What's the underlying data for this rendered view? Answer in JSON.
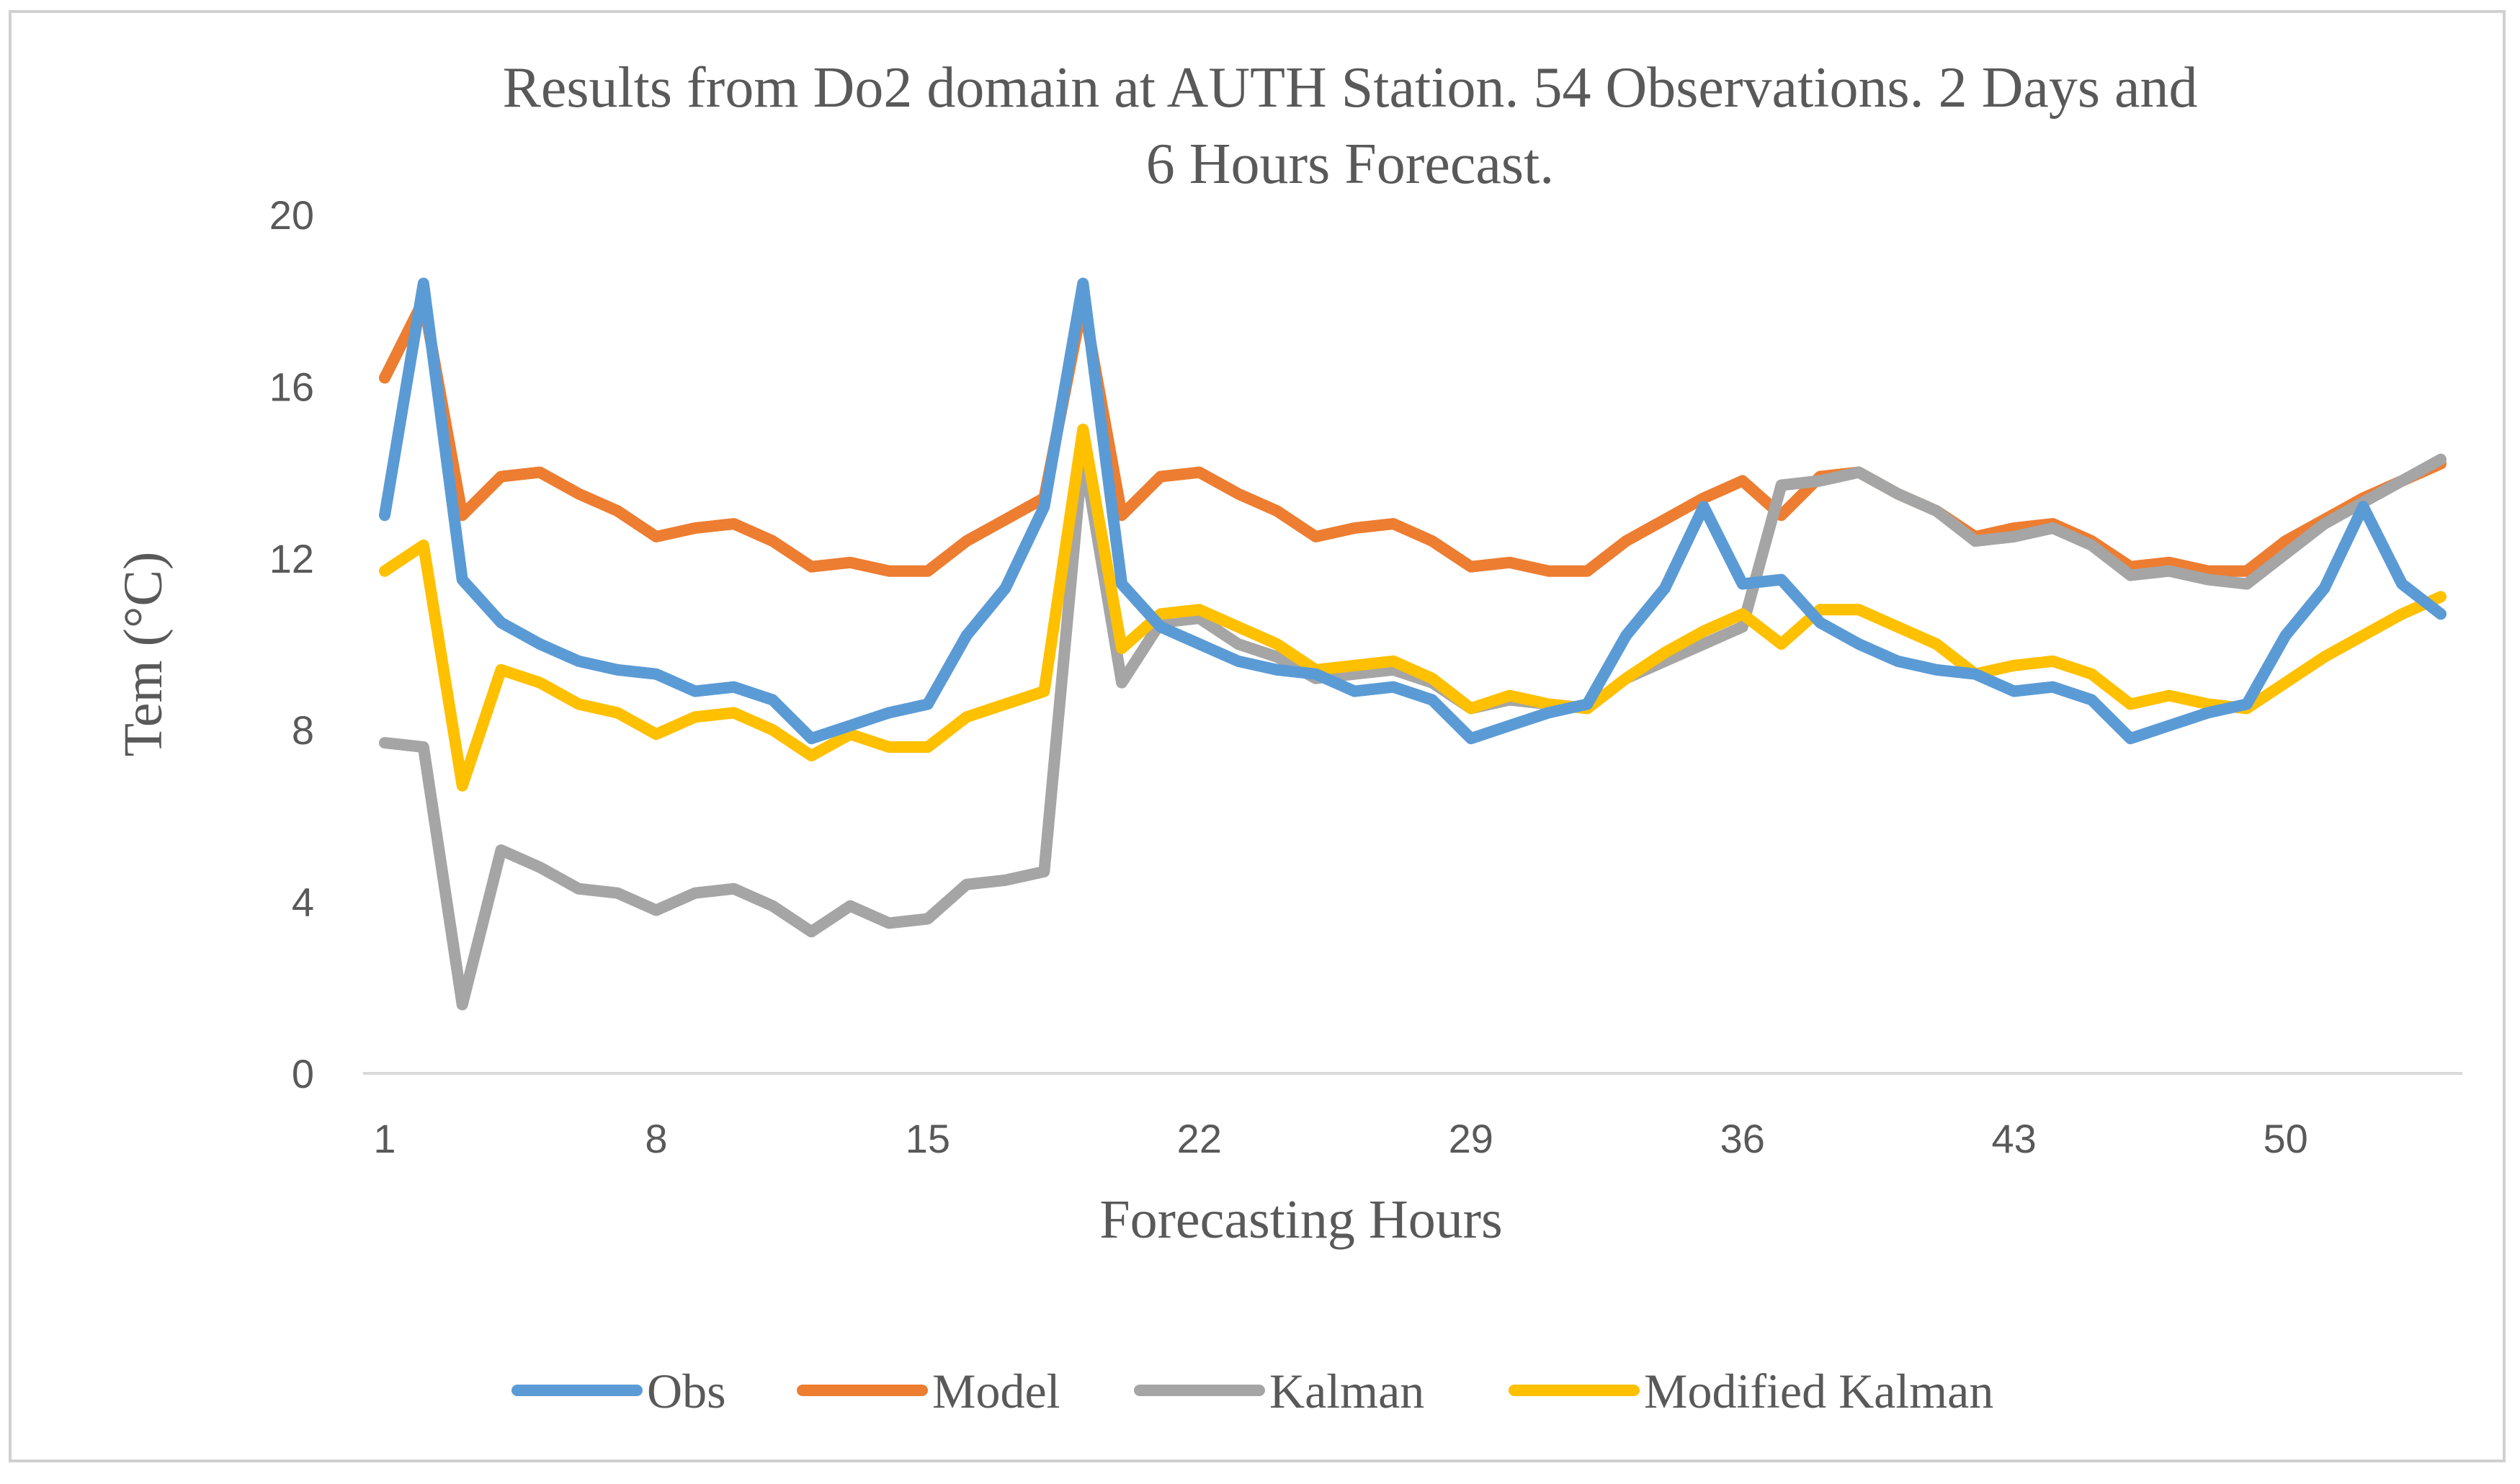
{
  "chart_data": {
    "type": "line",
    "title_lines": [
      "Results from Do2  domain at AUTH  Station. 54  Observations. 2 Days  and",
      "6 Hours Forecast."
    ],
    "xlabel": "Forecasting Hours",
    "ylabel": "Tem (°C)",
    "ylim": [
      0,
      20
    ],
    "yticks": [
      0,
      4,
      8,
      12,
      16,
      20
    ],
    "ytick_labels": [
      "0",
      "4",
      "8",
      "12",
      "16",
      "20"
    ],
    "xlim": [
      1,
      54
    ],
    "xticks": [
      1,
      8,
      15,
      22,
      29,
      36,
      43,
      50
    ],
    "xtick_labels": [
      "1",
      "8",
      "15",
      "22",
      "29",
      "36",
      "43",
      "50"
    ],
    "grid": false,
    "legend_position": "bottom",
    "x": [
      1,
      2,
      3,
      4,
      5,
      6,
      7,
      8,
      9,
      10,
      11,
      12,
      13,
      14,
      15,
      16,
      17,
      18,
      19,
      20,
      21,
      22,
      23,
      24,
      25,
      26,
      27,
      28,
      29,
      30,
      31,
      32,
      33,
      34,
      35,
      36,
      37,
      38,
      39,
      40,
      41,
      42,
      43,
      44,
      45,
      46,
      47,
      48,
      49,
      50,
      51,
      52,
      53,
      54
    ],
    "series": [
      {
        "name": "Obs",
        "color": "#5B9BD5",
        "values": [
          13.0,
          18.4,
          11.5,
          10.5,
          10.0,
          9.6,
          9.4,
          9.3,
          8.9,
          9.0,
          8.7,
          7.8,
          8.1,
          8.4,
          8.6,
          10.2,
          11.3,
          13.2,
          18.4,
          11.4,
          10.4,
          10.0,
          9.6,
          9.4,
          9.3,
          8.9,
          9.0,
          8.7,
          7.8,
          8.1,
          8.4,
          8.6,
          10.2,
          11.3,
          13.2,
          11.4,
          11.5,
          10.5,
          10.0,
          9.6,
          9.4,
          9.3,
          8.9,
          9.0,
          8.7,
          7.8,
          8.1,
          8.4,
          8.6,
          10.2,
          11.3,
          13.2,
          11.4,
          10.7
        ]
      },
      {
        "name": "Model",
        "color": "#ED7D31",
        "values": [
          16.2,
          18.0,
          13.0,
          13.9,
          14.0,
          13.5,
          13.1,
          12.5,
          12.7,
          12.8,
          12.4,
          11.8,
          11.9,
          11.7,
          11.7,
          12.4,
          12.9,
          13.4,
          18.0,
          13.0,
          13.9,
          14.0,
          13.5,
          13.1,
          12.5,
          12.7,
          12.8,
          12.4,
          11.8,
          11.9,
          11.7,
          11.7,
          12.4,
          12.9,
          13.4,
          13.8,
          13.0,
          13.9,
          14.0,
          13.5,
          13.1,
          12.5,
          12.7,
          12.8,
          12.4,
          11.8,
          11.9,
          11.7,
          11.7,
          12.4,
          12.9,
          13.4,
          13.8,
          14.2
        ]
      },
      {
        "name": "Kalman",
        "color": "#A5A5A5",
        "values": [
          7.7,
          7.6,
          1.6,
          5.2,
          4.8,
          4.3,
          4.2,
          3.8,
          4.2,
          4.3,
          3.9,
          3.3,
          3.9,
          3.5,
          3.6,
          4.4,
          4.5,
          4.7,
          14.5,
          9.1,
          10.5,
          10.6,
          10.0,
          9.7,
          9.2,
          9.3,
          9.4,
          9.1,
          8.5,
          8.7,
          8.6,
          8.5,
          9.2,
          9.6,
          10.0,
          10.4,
          13.7,
          13.8,
          14.0,
          13.5,
          13.1,
          12.4,
          12.5,
          12.7,
          12.3,
          11.6,
          11.7,
          11.5,
          11.4,
          12.1,
          12.8,
          13.3,
          13.8,
          14.3
        ]
      },
      {
        "name": "Modified Kalman",
        "color": "#FFC000",
        "values": [
          11.7,
          12.3,
          6.7,
          9.4,
          9.1,
          8.6,
          8.4,
          7.9,
          8.3,
          8.4,
          8.0,
          7.4,
          7.9,
          7.6,
          7.6,
          8.3,
          8.6,
          8.9,
          15.0,
          9.9,
          10.7,
          10.8,
          10.4,
          10.0,
          9.4,
          9.5,
          9.6,
          9.2,
          8.5,
          8.8,
          8.6,
          8.5,
          9.2,
          9.8,
          10.3,
          10.7,
          10.0,
          10.8,
          10.8,
          10.4,
          10.0,
          9.3,
          9.5,
          9.6,
          9.3,
          8.6,
          8.8,
          8.6,
          8.5,
          9.1,
          9.7,
          10.2,
          10.7,
          11.1
        ]
      }
    ]
  }
}
